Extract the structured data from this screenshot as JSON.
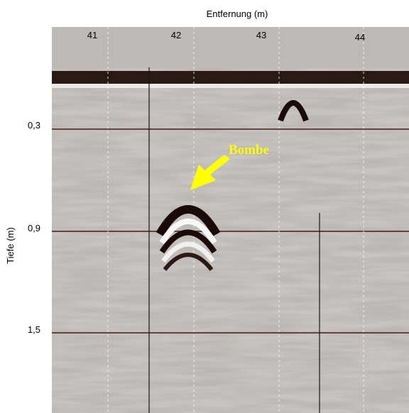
{
  "x_axis": {
    "title": "Entfernung (m)",
    "labels": [
      "41",
      "42",
      "43",
      "44"
    ]
  },
  "y_axis": {
    "title": "Tiefe (m)",
    "labels": [
      "0,3",
      "0,9",
      "1,5"
    ]
  },
  "annotation": "Bombe"
}
